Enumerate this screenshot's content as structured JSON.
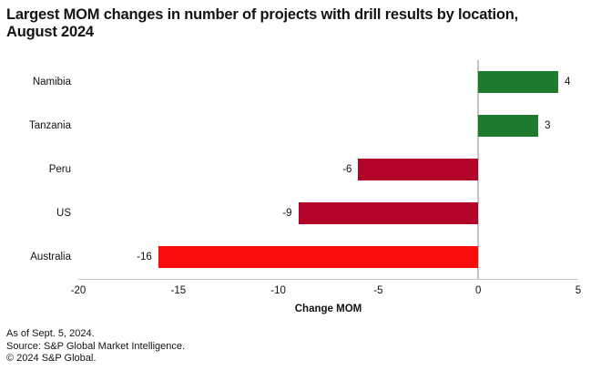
{
  "title_lines": [
    "Largest MOM changes in number of projects with drill results by location,",
    "August 2024"
  ],
  "chart_data": {
    "type": "bar",
    "orientation": "horizontal",
    "title": "Largest MOM changes in number of projects with drill results by location, August 2024",
    "categories": [
      "Namibia",
      "Tanzania",
      "Peru",
      "US",
      "Australia"
    ],
    "values": [
      4,
      3,
      -6,
      -9,
      -16
    ],
    "value_labels": [
      "4",
      "3",
      "-6",
      "-9",
      "-16"
    ],
    "bar_colors": [
      "#1e7b2e",
      "#1e7b2e",
      "#b2032b",
      "#b2032b",
      "#fb0d0c"
    ],
    "xlabel": "Change MOM",
    "ylabel": "",
    "xlim": [
      -20,
      5
    ],
    "xticks": [
      -20,
      -15,
      -10,
      -5,
      0,
      5
    ],
    "grid": false,
    "legend": "none",
    "zero_line": true,
    "axis_color": "#c4c4c4"
  },
  "footer": {
    "as_of": "As of Sept. 5, 2024.",
    "source": "Source: S&P Global Market Intelligence.",
    "copyright": "© 2024 S&P Global."
  }
}
